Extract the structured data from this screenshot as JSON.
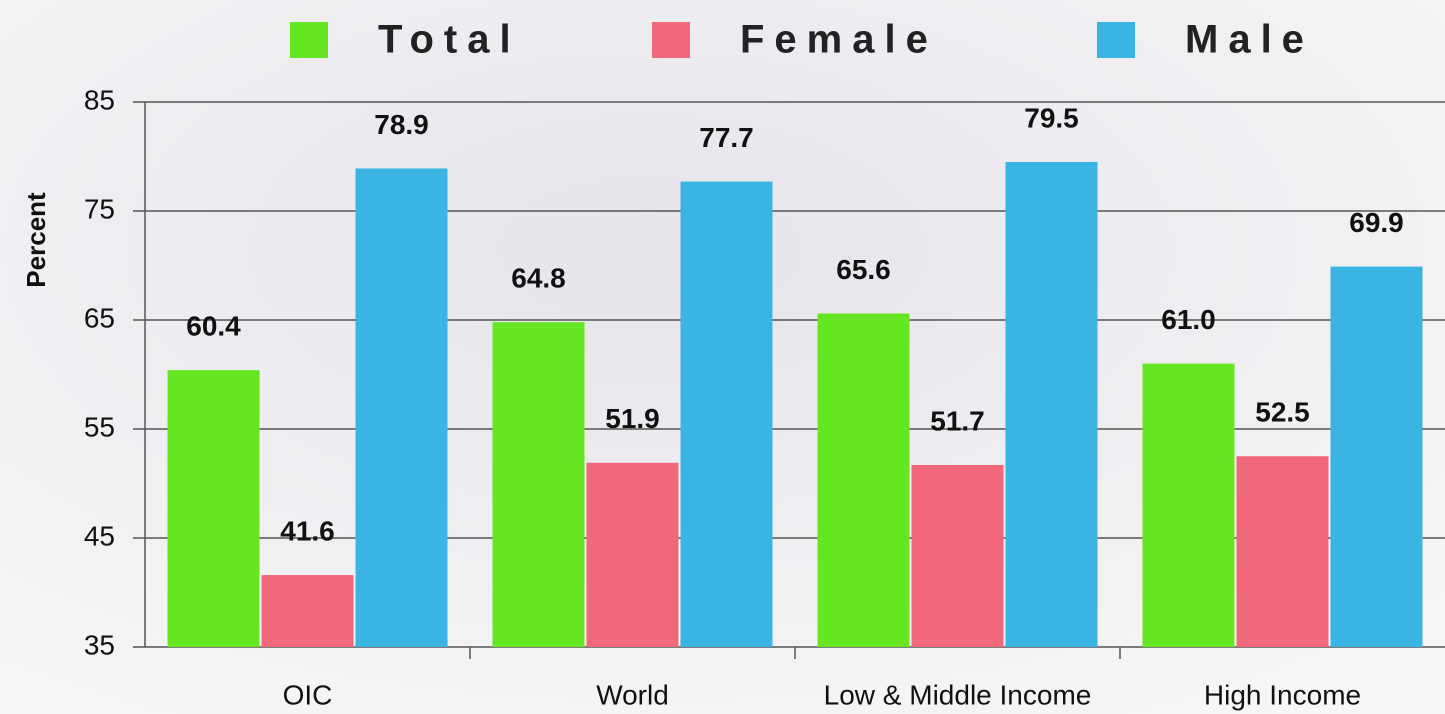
{
  "chart_data": {
    "type": "bar",
    "y_label": "Percent",
    "categories": [
      "OIC",
      "World",
      "Low & Middle Income",
      "High Income"
    ],
    "series": [
      {
        "name": "Total",
        "color": "#66e622",
        "values": [
          60.4,
          64.8,
          65.6,
          61
        ],
        "value_labels": [
          "60.4",
          "64.8",
          "65.6",
          "61.0"
        ]
      },
      {
        "name": "Female",
        "color": "#f0687a",
        "values": [
          41.6,
          51.9,
          51.7,
          52.5
        ],
        "value_labels": [
          "41.6",
          "51.9",
          "51.7",
          "52.5"
        ]
      },
      {
        "name": "Male",
        "color": "#3ab4e2",
        "values": [
          78.9,
          77.7,
          79.5,
          69.9
        ],
        "value_labels": [
          "78.9",
          "77.7",
          "79.5",
          "69.9"
        ]
      }
    ],
    "ylim": [
      35,
      85
    ],
    "yticks": [
      35,
      45,
      55,
      65,
      75,
      85
    ],
    "grid": true,
    "legend": "top"
  }
}
